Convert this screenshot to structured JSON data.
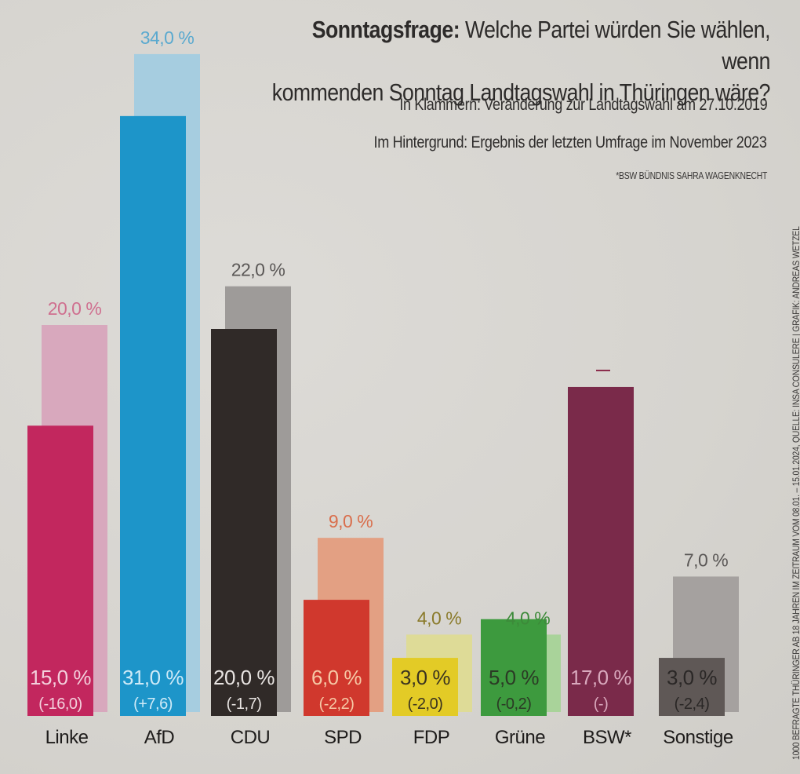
{
  "header": {
    "title_bold": "Sonntagsfrage:",
    "title_rest_line1": "Welche Partei würden Sie wählen, wenn",
    "title_line2": "kommenden Sonntag Landtagswahl in Thüringen wäre?",
    "subtitle_brackets": "In Klammern: Veränderung zur Landtagswahl am 27.10.2019",
    "subtitle_background": "Im Hintergrund: Ergebnis der letzten Umfrage im November 2023",
    "footnote": "*BSW BÜNDNIS SAHRA WAGENKNECHT"
  },
  "source_note": "1000 BEFRAGTE THÜRINGER AB 18 JAHREN IM ZEITRAUM VOM 08.01. – 15.01.2024, QUELLE: INSA CONSULERE | GRAFIK: ANDREAS WETZEL",
  "chart_data": {
    "type": "bar",
    "title": "Sonntagsfrage: Welche Partei würden Sie wählen, wenn kommenden Sonntag Landtagswahl in Thüringen wäre?",
    "xlabel": "",
    "ylabel": "",
    "ylim": [
      0,
      35
    ],
    "grid": false,
    "legend": "none",
    "categories": [
      "Linke",
      "AfD",
      "CDU",
      "SPD",
      "FDP",
      "Grüne",
      "BSW*",
      "Sonstige"
    ],
    "series": [
      {
        "name": "Umfrage Januar 2024",
        "values": [
          15.0,
          31.0,
          20.0,
          6.0,
          3.0,
          5.0,
          17.0,
          3.0
        ],
        "labels": [
          "15,0 %",
          "31,0 %",
          "20,0 %",
          "6,0 %",
          "3,0 %",
          "5,0 %",
          "17,0 %",
          "3,0 %"
        ],
        "change_labels": [
          "(-16,0)",
          "(+7,6)",
          "(-1,7)",
          "(-2,2)",
          "(-2,0)",
          "(-0,2)",
          "(-)",
          "(-2,4)"
        ],
        "changes": [
          -16.0,
          7.6,
          -1.7,
          -2.2,
          -2.0,
          -0.2,
          null,
          -2.4
        ]
      },
      {
        "name": "Letzte Umfrage November 2023",
        "values": [
          20.0,
          34.0,
          22.0,
          9.0,
          4.0,
          4.0,
          null,
          7.0
        ],
        "labels": [
          "20,0 %",
          "34,0 %",
          "22,0 %",
          "9,0 %",
          "4,0 %",
          "4,0 %",
          "–",
          "7,0 %"
        ]
      }
    ],
    "colors": {
      "foreground": [
        "#c2275e",
        "#1d95c9",
        "#302a28",
        "#d0382d",
        "#e3cb26",
        "#3d9a3e",
        "#7a2a4a",
        "#5f5856"
      ],
      "background": [
        "#d8a8bd",
        "#a6cde0",
        "#9e9b99",
        "#e3a083",
        "#dedb97",
        "#a9d39a",
        "#7a2a4a",
        "#a5a19f"
      ],
      "bg_label": [
        "#cf6f8f",
        "#5aa9cf",
        "#5a5756",
        "#d96e4c",
        "#8a7a2a",
        "#3d8a3a",
        "#8a2a4a",
        "#5a5756"
      ],
      "value_text": [
        "#f3d0dc",
        "#cfeaf7",
        "#e8e4e2",
        "#f6c9a6",
        "#3a3320",
        "#2b3a25",
        "#d9a9bd",
        "#2a2726"
      ],
      "category_text": "#1e1c1b"
    }
  }
}
